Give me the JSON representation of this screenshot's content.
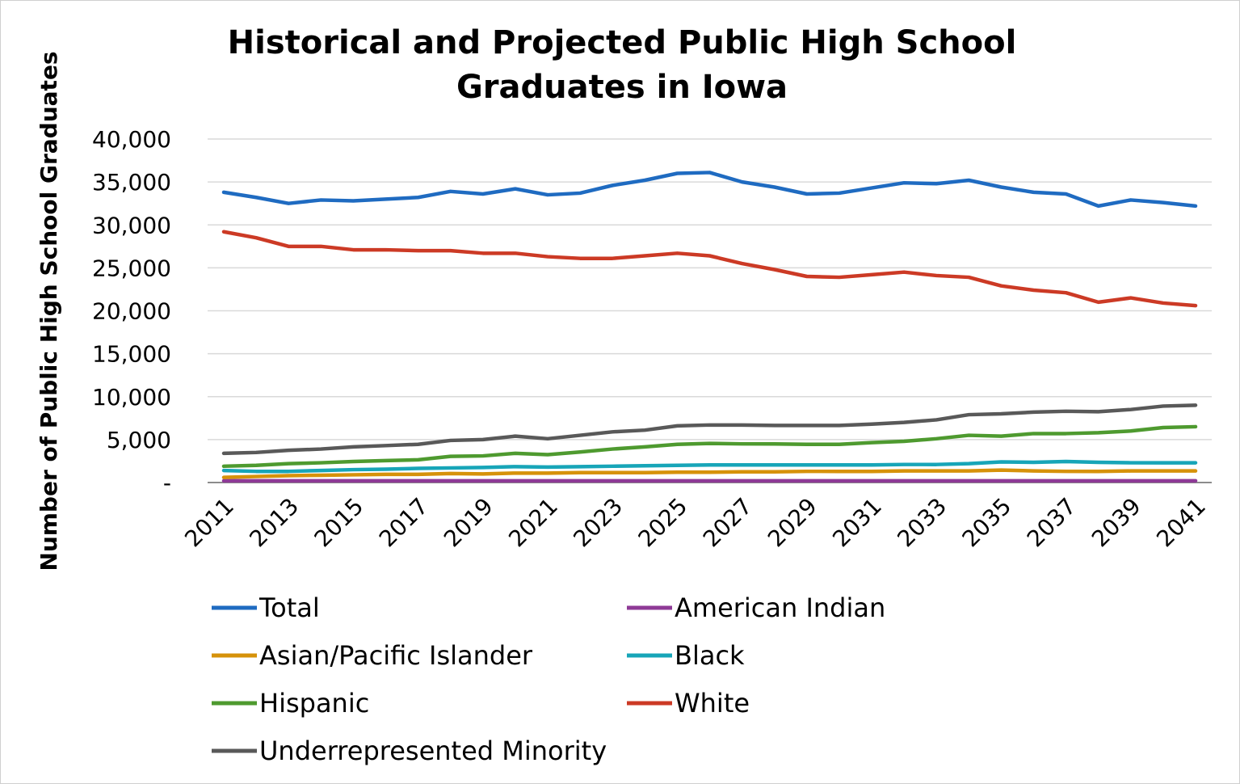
{
  "chart_data": {
    "type": "line",
    "title_line1": "Historical and Projected Public High School",
    "title_line2": "Graduates in Iowa",
    "ylabel": "Number of Public High School Graduates",
    "xlabel": "",
    "ylim": [
      0,
      40000
    ],
    "yticks": [
      0,
      5000,
      10000,
      15000,
      20000,
      25000,
      30000,
      35000,
      40000
    ],
    "ytick_labels": [
      "-",
      "5,000",
      "10,000",
      "15,000",
      "20,000",
      "25,000",
      "30,000",
      "35,000",
      "40,000"
    ],
    "x": [
      2011,
      2012,
      2013,
      2014,
      2015,
      2016,
      2017,
      2018,
      2019,
      2020,
      2021,
      2022,
      2023,
      2024,
      2025,
      2026,
      2027,
      2028,
      2029,
      2030,
      2031,
      2032,
      2033,
      2034,
      2035,
      2036,
      2037,
      2038,
      2039,
      2040,
      2041
    ],
    "xtick_labels": [
      "2011",
      "2013",
      "2015",
      "2017",
      "2019",
      "2021",
      "2023",
      "2025",
      "2027",
      "2029",
      "2031",
      "2033",
      "2035",
      "2037",
      "2039",
      "2041"
    ],
    "grid": true,
    "legend_position": "bottom",
    "series": [
      {
        "name": "Total",
        "color": "#1f6bc1",
        "values": [
          33800,
          33200,
          32500,
          32900,
          32800,
          33000,
          33200,
          33900,
          33600,
          34200,
          33500,
          33700,
          34600,
          35200,
          36000,
          36100,
          35000,
          34400,
          33600,
          33700,
          34300,
          34900,
          34800,
          35200,
          34400,
          33800,
          33600,
          32200,
          32900,
          32600,
          32200
        ]
      },
      {
        "name": "American Indian",
        "color": "#8e3a96",
        "values": [
          200,
          200,
          200,
          200,
          200,
          200,
          200,
          200,
          200,
          200,
          200,
          200,
          200,
          200,
          200,
          200,
          200,
          200,
          200,
          200,
          200,
          200,
          200,
          200,
          200,
          200,
          200,
          200,
          200,
          200,
          200
        ]
      },
      {
        "name": "Asian/Pacific Islander",
        "color": "#d6920a",
        "values": [
          600,
          700,
          800,
          850,
          900,
          950,
          950,
          1050,
          1000,
          1100,
          1100,
          1150,
          1150,
          1150,
          1200,
          1200,
          1250,
          1250,
          1300,
          1300,
          1300,
          1350,
          1350,
          1350,
          1450,
          1350,
          1300,
          1300,
          1350,
          1350,
          1350
        ]
      },
      {
        "name": "Black",
        "color": "#17a5b8",
        "values": [
          1400,
          1300,
          1300,
          1400,
          1500,
          1550,
          1650,
          1700,
          1750,
          1850,
          1800,
          1850,
          1900,
          1950,
          2000,
          2050,
          2050,
          2050,
          2050,
          2050,
          2050,
          2100,
          2100,
          2200,
          2400,
          2350,
          2450,
          2350,
          2300,
          2300,
          2300
        ]
      },
      {
        "name": "Hispanic",
        "color": "#4e9a2f",
        "values": [
          1900,
          2000,
          2200,
          2300,
          2450,
          2550,
          2650,
          3050,
          3100,
          3400,
          3250,
          3550,
          3900,
          4150,
          4450,
          4550,
          4500,
          4500,
          4450,
          4450,
          4650,
          4800,
          5100,
          5500,
          5400,
          5700,
          5700,
          5800,
          6000,
          6400,
          6500
        ]
      },
      {
        "name": "White",
        "color": "#cc3a25",
        "values": [
          29200,
          28500,
          27500,
          27500,
          27100,
          27100,
          27000,
          27000,
          26700,
          26700,
          26300,
          26100,
          26100,
          26400,
          26700,
          26400,
          25500,
          24800,
          24000,
          23900,
          24200,
          24500,
          24100,
          23900,
          22900,
          22400,
          22100,
          21000,
          21500,
          20900,
          20600
        ]
      },
      {
        "name": "Underrepresented Minority",
        "color": "#595959",
        "values": [
          3400,
          3500,
          3750,
          3900,
          4150,
          4300,
          4450,
          4900,
          5000,
          5400,
          5100,
          5500,
          5900,
          6100,
          6600,
          6700,
          6700,
          6650,
          6650,
          6650,
          6800,
          7000,
          7300,
          7900,
          8000,
          8200,
          8300,
          8250,
          8500,
          8900,
          9000
        ]
      }
    ]
  }
}
